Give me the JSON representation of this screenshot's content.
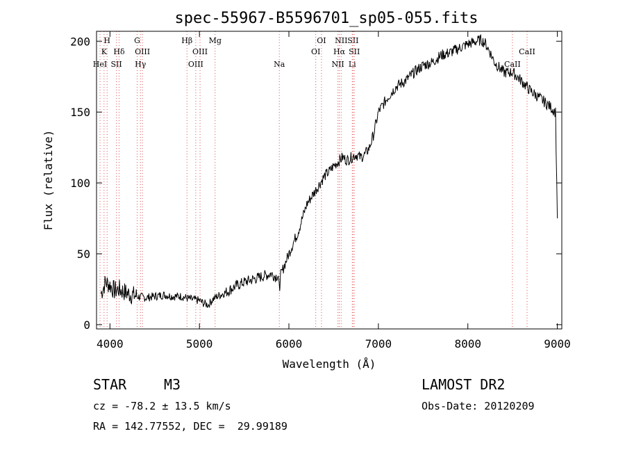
{
  "chart_data": {
    "type": "line",
    "title": "spec-55967-B5596701_sp05-055.fits",
    "xlabel": "Wavelength (Å)",
    "ylabel": "Flux (relative)",
    "xlim": [
      3850,
      9050
    ],
    "ylim": [
      -3,
      207
    ],
    "xticks": [
      4000,
      5000,
      6000,
      7000,
      8000,
      9000
    ],
    "yticks": [
      0,
      50,
      100,
      150,
      200
    ],
    "grid": false,
    "series": [
      {
        "x": [
          3900,
          3950,
          4000,
          4050,
          4100,
          4200,
          4300,
          4400,
          4500,
          4600,
          4700,
          4800,
          4900,
          5000,
          5050,
          5100,
          5150,
          5200,
          5300,
          5400,
          5500,
          5600,
          5700,
          5800,
          5850,
          5880,
          5895,
          5900,
          5910,
          5950,
          6000,
          6050,
          6100,
          6150,
          6200,
          6250,
          6300,
          6350,
          6400,
          6450,
          6500,
          6550,
          6600,
          6650,
          6700,
          6750,
          6800,
          6850,
          6900,
          6950,
          7000,
          7100,
          7200,
          7300,
          7400,
          7500,
          7600,
          7700,
          7800,
          7900,
          8000,
          8100,
          8150,
          8200,
          8250,
          8300,
          8400,
          8500,
          8600,
          8700,
          8800,
          8900,
          8950,
          8980,
          9000
        ],
        "y": [
          22,
          30,
          28,
          24,
          25,
          22,
          20,
          19,
          20,
          21,
          20,
          20,
          18,
          17,
          15,
          14,
          18,
          20,
          23,
          27,
          30,
          32,
          34,
          36,
          34,
          35,
          23,
          30,
          35,
          42,
          50,
          58,
          65,
          75,
          85,
          90,
          95,
          100,
          105,
          108,
          112,
          115,
          118,
          116,
          118,
          120,
          118,
          120,
          125,
          135,
          150,
          160,
          168,
          172,
          178,
          183,
          185,
          190,
          192,
          195,
          198,
          200,
          201,
          198,
          192,
          185,
          178,
          178,
          172,
          165,
          160,
          155,
          152,
          150,
          75
        ],
        "color": "#000000"
      }
    ],
    "spectral_lines": [
      {
        "label": "H",
        "x": 3968,
        "row": 1
      },
      {
        "label": "K",
        "x": 3934,
        "row": 2
      },
      {
        "label": "HeI",
        "x": 3889,
        "row": 3
      },
      {
        "label": "SII",
        "x": 4072,
        "row": 3
      },
      {
        "label": "Hδ",
        "x": 4102,
        "row": 2
      },
      {
        "label": "G",
        "x": 4304,
        "row": 1
      },
      {
        "label": "OIII",
        "x": 4363,
        "row": 2
      },
      {
        "label": "Hγ",
        "x": 4341,
        "row": 3
      },
      {
        "label": "Hβ",
        "x": 4861,
        "row": 1
      },
      {
        "label": "OIII",
        "x": 5007,
        "row": 2
      },
      {
        "label": "OIII",
        "x": 4959,
        "row": 3
      },
      {
        "label": "Mg",
        "x": 5175,
        "row": 1
      },
      {
        "label": "Na",
        "x": 5893,
        "row": 3
      },
      {
        "label": "OI",
        "x": 6364,
        "row": 1
      },
      {
        "label": "OI",
        "x": 6300,
        "row": 2
      },
      {
        "label": "NII",
        "x": 6584,
        "row": 1
      },
      {
        "label": "SII",
        "x": 6717,
        "row": 1
      },
      {
        "label": "Hα",
        "x": 6563,
        "row": 2
      },
      {
        "label": "SII",
        "x": 6731,
        "row": 2
      },
      {
        "label": "NII",
        "x": 6548,
        "row": 3
      },
      {
        "label": "Li",
        "x": 6708,
        "row": 3
      },
      {
        "label": "CaII",
        "x": 8662,
        "row": 2
      },
      {
        "label": "CaII",
        "x": 8498,
        "row": 3
      }
    ]
  },
  "info": {
    "object_class": "STAR",
    "subclass": "M3",
    "survey": "LAMOST DR2",
    "cz": "cz = -78.2 ± 13.5 km/s",
    "obs_date": "Obs-Date: 20120209",
    "coords": "RA = 142.77552, DEC =  29.99189"
  }
}
